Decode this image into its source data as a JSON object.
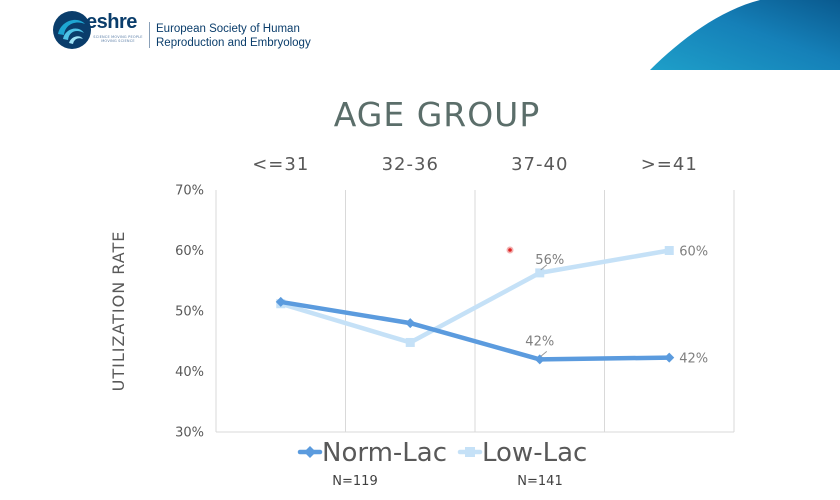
{
  "header": {
    "logo_text": "eshre",
    "logo_tagline": "SCIENCE MOVING PEOPLE MOVING SCIENCE",
    "org_name_line1": "European Society of Human",
    "org_name_line2": "Reproduction and Embryology"
  },
  "colors": {
    "norm_lac": "#5b9bde",
    "low_lac": "#c5e1f7",
    "grid": "#d9d9d9",
    "text": "#595959",
    "brand": "#0a3d6b",
    "corner_teal": "#1e9fc9"
  },
  "chart_data": {
    "type": "line",
    "title": "AGE GROUP",
    "ylabel": "UTILIZATION RATE",
    "xlabel": "",
    "categories": [
      "<=31",
      "32-36",
      "37-40",
      ">=41"
    ],
    "ylim": [
      30,
      70
    ],
    "yticks": [
      30,
      40,
      50,
      60,
      70
    ],
    "ytick_labels": [
      "30%",
      "40%",
      "50%",
      "60%",
      "70%"
    ],
    "grid": "vertical",
    "legend_position": "bottom",
    "series": [
      {
        "name": "Norm-Lac",
        "values": [
          51.5,
          48,
          42,
          42.3
        ],
        "labels": [
          "",
          "",
          "42%",
          "42%"
        ],
        "n_label": "N=119"
      },
      {
        "name": "Low-Lac",
        "values": [
          51.2,
          44.8,
          56.3,
          60
        ],
        "labels": [
          "",
          "",
          "56%",
          "60%"
        ],
        "n_label": "N=141"
      }
    ]
  }
}
